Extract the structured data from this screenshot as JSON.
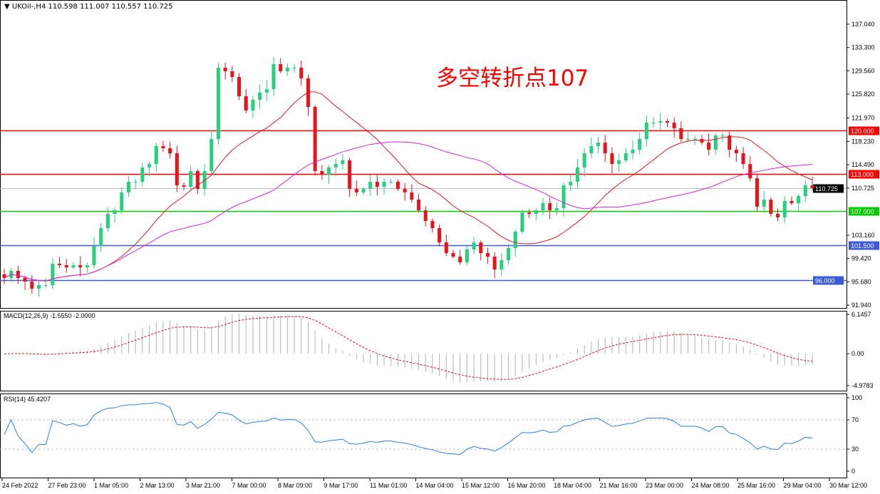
{
  "header": {
    "arrow_icon": "triangle-down-icon",
    "symbol": "UKOil-,H4",
    "open": "110.598",
    "high": "111.007",
    "low": "110.557",
    "close": "110.725"
  },
  "annotation": "多空转折点107",
  "colors": {
    "bull": "#26d07c",
    "bear": "#e8141b",
    "ma_fast": "#e8141b",
    "ma_slow": "#dd22dd",
    "rsi": "#2a82da",
    "macd_hist": "#b0b0b0",
    "macd_signal": "#e8141b"
  },
  "chart_data": [
    {
      "type": "candlestick",
      "timeframe": "H4",
      "ylim": [
        91.94,
        137.04
      ],
      "y_ticks": [
        "137.040",
        "133.300",
        "129.560",
        "125.820",
        "121.970",
        "118.230",
        "114.490",
        "110.725",
        "103.160",
        "99.420",
        "95.680",
        "91.940"
      ],
      "x_ticks": [
        "24 Feb 2022",
        "27 Feb 23:00",
        "1 Mar 05:00",
        "2 Mar 13:00",
        "3 Mar 21:00",
        "7 Mar 00:00",
        "8 Mar 09:00",
        "9 Mar 17:00",
        "11 Mar 01:00",
        "14 Mar 04:00",
        "15 Mar 12:00",
        "16 Mar 20:00",
        "18 Mar 04:00",
        "21 Mar 16:00",
        "23 Mar 00:00",
        "24 Mar 08:00",
        "25 Mar 16:00",
        "29 Mar 04:00",
        "30 Mar 12:00"
      ],
      "closes": [
        96.29,
        97.43,
        96.29,
        95.72,
        94.57,
        95.14,
        95.14,
        98.58,
        98.35,
        98.01,
        98.35,
        98.01,
        98.35,
        101.44,
        104.3,
        106.59,
        107.16,
        110.03,
        111.74,
        111.74,
        114.04,
        114.6,
        117.47,
        117.12,
        116.32,
        111.17,
        110.94,
        113.46,
        110.6,
        113.46,
        118.61,
        130.06,
        129.49,
        128.57,
        125.48,
        123.19,
        124.91,
        126.05,
        126.62,
        130.63,
        129.49,
        130.06,
        130.06,
        128.34,
        123.76,
        113.46,
        112.89,
        114.04,
        114.6,
        115.18,
        110.6,
        110.03,
        110.6,
        111.74,
        110.94,
        111.74,
        111.74,
        110.6,
        110.03,
        108.88,
        107.16,
        105.45,
        104.3,
        102.01,
        100.3,
        99.72,
        98.81,
        100.87,
        102.01,
        100.3,
        99.72,
        97.66,
        99.15,
        101.1,
        103.73,
        106.82,
        106.59,
        107.16,
        108.31,
        107.16,
        107.51,
        111.17,
        111.74,
        114.04,
        116.32,
        117.47,
        118.04,
        116.32,
        114.6,
        115.18,
        116.32,
        116.89,
        118.61,
        121.24,
        121.24,
        121.47,
        121.24,
        120.33,
        118.61,
        118.61,
        118.61,
        118.04,
        116.89,
        119.18,
        119.18,
        116.89,
        116.32,
        114.6,
        112.31,
        107.74,
        108.88,
        106.59,
        106.02,
        108.65,
        108.31,
        109.45,
        111.17,
        110.725
      ],
      "levels": [
        {
          "price": 120.0,
          "label": "120.000",
          "color": "#ff0000"
        },
        {
          "price": 113.0,
          "label": "113.000",
          "color": "#ff0000"
        },
        {
          "price": 107.0,
          "label": "107.000",
          "color": "#00cc00"
        },
        {
          "price": 101.5,
          "label": "101.500",
          "color": "#3b5bdb"
        },
        {
          "price": 96.0,
          "label": "96.000",
          "color": "#3b5bdb"
        }
      ],
      "current_price": {
        "price": 110.725,
        "label": "110.725"
      }
    },
    {
      "type": "macd",
      "label": "MACD(12,26,9) -1.5550 -2.0000",
      "ylim": [
        -4.9783,
        6.1457
      ],
      "y_ticks": [
        "6.1457",
        "0.00",
        "-4.9783"
      ]
    },
    {
      "type": "rsi",
      "label": "RSI(14) 45.4207",
      "ylim": [
        0,
        100
      ],
      "y_ticks": [
        "100",
        "70",
        "30",
        "0"
      ],
      "levels": [
        70,
        30
      ]
    }
  ]
}
